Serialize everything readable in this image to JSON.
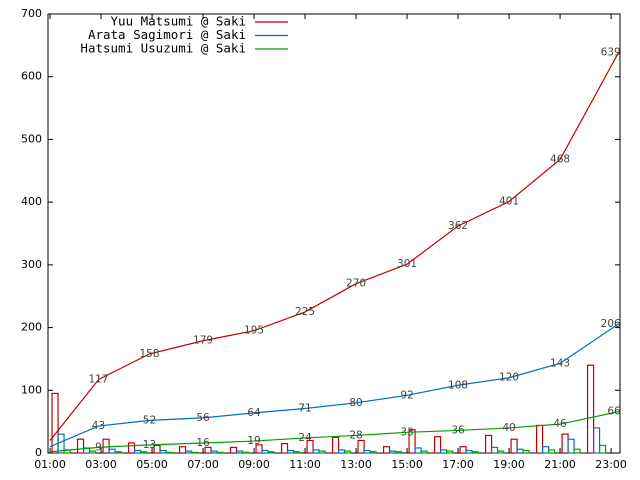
{
  "chart_data": {
    "type": "line",
    "xlim": [
      0.92,
      23.35
    ],
    "ylim": [
      0,
      700
    ],
    "xticks": [
      {
        "value": 1,
        "label": "01:00"
      },
      {
        "value": 3,
        "label": "03:00"
      },
      {
        "value": 5,
        "label": "05:00"
      },
      {
        "value": 7,
        "label": "07:00"
      },
      {
        "value": 9,
        "label": "09:00"
      },
      {
        "value": 11,
        "label": "11:00"
      },
      {
        "value": 13,
        "label": "13:00"
      },
      {
        "value": 15,
        "label": "15:00"
      },
      {
        "value": 17,
        "label": "17:00"
      },
      {
        "value": 19,
        "label": "19:00"
      },
      {
        "value": 21,
        "label": "21:00"
      },
      {
        "value": 23,
        "label": "23:00"
      }
    ],
    "yticks": [
      0,
      100,
      200,
      300,
      400,
      500,
      600,
      700
    ],
    "x": [
      1,
      2.9,
      4.9,
      7,
      9,
      11,
      13,
      15,
      17,
      19,
      21,
      23.3
    ],
    "hours": [
      1,
      2,
      3,
      4,
      5,
      6,
      7,
      8,
      9,
      10,
      11,
      12,
      13,
      14,
      15,
      16,
      17,
      18,
      19,
      20,
      21,
      22
    ],
    "series": [
      {
        "name": "Yuu Matsumi @ Saki",
        "color": "#c00000",
        "values": [
          20,
          117,
          158,
          179,
          195,
          225,
          270,
          301,
          362,
          401,
          468,
          639
        ],
        "hourly": [
          95,
          22,
          22,
          16,
          12,
          10,
          9,
          9,
          13,
          15,
          20,
          25,
          20,
          10,
          37,
          26,
          10,
          28,
          22,
          44,
          30,
          140
        ]
      },
      {
        "name": "Arata Sagimori @ Saki",
        "color": "#0070c0",
        "values": [
          10,
          43,
          52,
          56,
          64,
          71,
          80,
          92,
          108,
          120,
          143,
          206
        ],
        "hourly": [
          30,
          8,
          6,
          4,
          4,
          3,
          3,
          3,
          4,
          4,
          5,
          5,
          4,
          3,
          8,
          5,
          4,
          9,
          6,
          10,
          22,
          40
        ]
      },
      {
        "name": "Hatsumi Usuzumi @ Saki",
        "color": "#00a000",
        "values": [
          2,
          9,
          13,
          16,
          19,
          24,
          28,
          33,
          36,
          40,
          46,
          66
        ],
        "hourly": [
          5,
          3,
          2,
          2,
          1,
          1,
          1,
          1,
          2,
          2,
          3,
          3,
          2,
          2,
          3,
          3,
          2,
          3,
          4,
          5,
          6,
          12
        ]
      }
    ]
  }
}
